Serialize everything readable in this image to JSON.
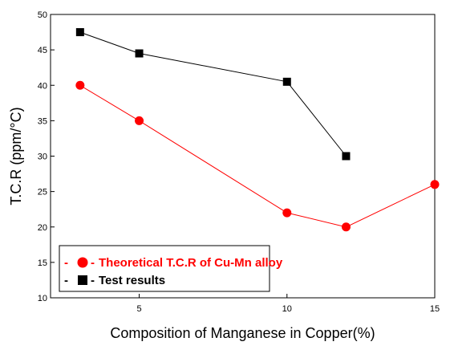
{
  "chart_data": {
    "type": "line",
    "title": "",
    "xlabel": "Composition of Manganese in Copper(%)",
    "ylabel": "T.C.R (ppm/°C)",
    "xlim": [
      2,
      15
    ],
    "ylim": [
      10,
      50
    ],
    "x_ticks": [
      5,
      10,
      15
    ],
    "y_ticks": [
      10,
      15,
      20,
      25,
      30,
      35,
      40,
      45,
      50
    ],
    "grid": false,
    "legend_position": "bottom-left",
    "series": [
      {
        "name": "Theoretical T.C.R of Cu-Mn alloy",
        "legend_prefix": "-",
        "legend_suffix": "-",
        "marker": "circle",
        "color": "#ff0000",
        "x": [
          3,
          5,
          10,
          12,
          15
        ],
        "y": [
          40,
          35,
          22,
          20,
          26
        ]
      },
      {
        "name": "Test results",
        "legend_prefix": "-",
        "legend_suffix": "-",
        "marker": "square",
        "color": "#000000",
        "x": [
          3,
          5,
          10,
          12
        ],
        "y": [
          47.5,
          44.5,
          40.5,
          30
        ]
      }
    ]
  }
}
